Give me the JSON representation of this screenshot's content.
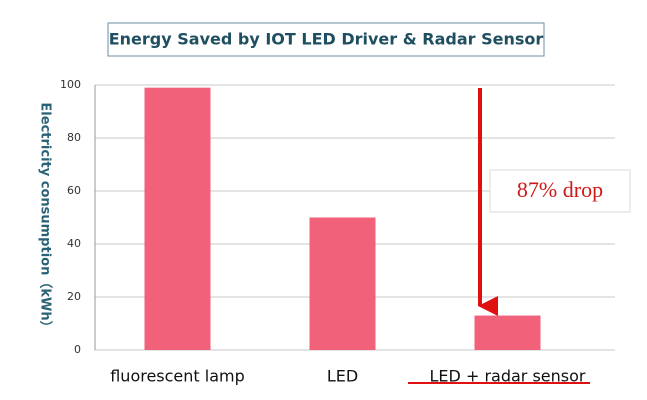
{
  "chart_data": {
    "type": "bar",
    "title": "Energy Saved by IOT LED Driver & Radar Sensor",
    "y_label": "Electricity consumption（kWh）",
    "categories": [
      "fluorescent lamp",
      "LED",
      "LED + radar sensor"
    ],
    "values": [
      99,
      50,
      13
    ],
    "color": "#f2617a",
    "ylim": [
      0,
      100
    ],
    "yticks": [
      0,
      20,
      40,
      60,
      80,
      100
    ],
    "grid": true,
    "annotation": "87% drop"
  }
}
